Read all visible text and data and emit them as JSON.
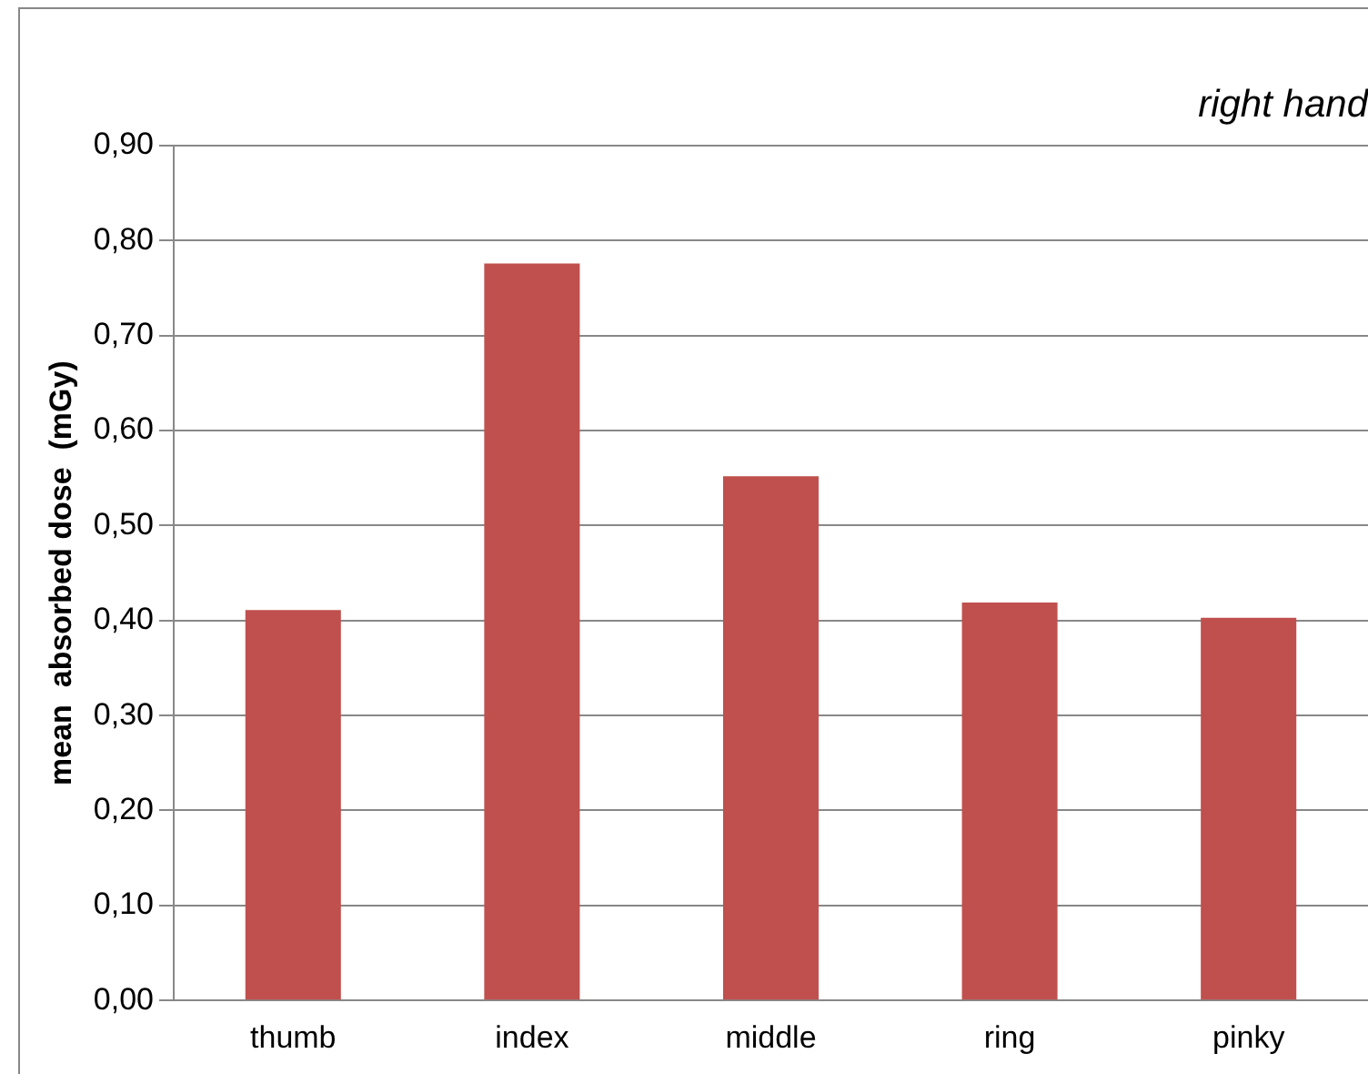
{
  "chart_data": {
    "type": "bar",
    "title": "right hand",
    "ylabel": "mean  absorbed dose  (mGy)",
    "categories": [
      "thumb",
      "index",
      "middle",
      "ring",
      "pinky"
    ],
    "series": [
      {
        "color": "#c0504d",
        "values": [
          0.411,
          0.776,
          0.552,
          0.419,
          0.403
        ]
      }
    ],
    "ylim": [
      0,
      0.9
    ],
    "yticks": [
      {
        "value": 0,
        "label": "0,00"
      },
      {
        "value": 0.1,
        "label": "0,10"
      },
      {
        "value": 0.2,
        "label": "0,20"
      },
      {
        "value": 0.3,
        "label": "0,30"
      },
      {
        "value": 0.4,
        "label": "0,40"
      },
      {
        "value": 0.5,
        "label": "0,50"
      },
      {
        "value": 0.6,
        "label": "0,60"
      },
      {
        "value": 0.7,
        "label": "0,70"
      },
      {
        "value": 0.8,
        "label": "0,80"
      },
      {
        "value": 0.9,
        "label": "0,90"
      }
    ],
    "grid": "y",
    "legend": false
  }
}
